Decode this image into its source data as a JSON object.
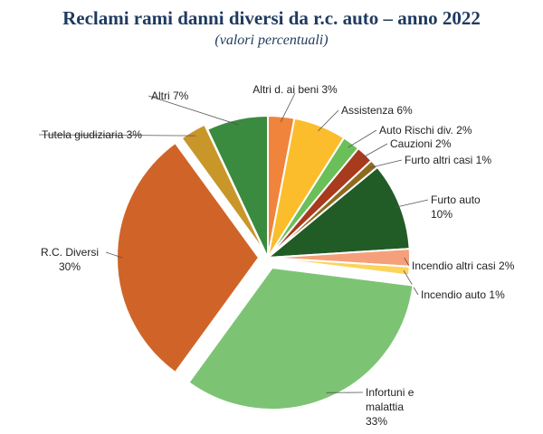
{
  "title": "Reclami rami danni diversi da r.c. auto – anno 2022",
  "subtitle": "(valori percentuali)",
  "chart_data": {
    "type": "pie",
    "unit": "%",
    "slices": [
      {
        "label": "Altri d. ai beni 3%",
        "value": 3,
        "color": "#f0843c"
      },
      {
        "label": "Assistenza 6%",
        "value": 6,
        "color": "#fbbd2c"
      },
      {
        "label": "Auto Rischi div.  2%",
        "value": 2,
        "color": "#6abf59"
      },
      {
        "label": "Cauzioni 2%",
        "value": 2,
        "color": "#a83a1d"
      },
      {
        "label": "Furto altri casi 1%",
        "value": 1,
        "color": "#8e6a1f"
      },
      {
        "label": [
          "Furto auto",
          "10%"
        ],
        "value": 10,
        "color": "#215b25"
      },
      {
        "label": "Incendio altri casi 2%",
        "value": 2,
        "color": "#f5a07a"
      },
      {
        "label": "Incendio auto 1%",
        "value": 1,
        "color": "#fcd45c"
      },
      {
        "label": [
          "Infortuni e",
          "malattia",
          "33%"
        ],
        "value": 33,
        "color": "#7cc474"
      },
      {
        "label": [
          "R.C. Diversi",
          "30%"
        ],
        "value": 30,
        "color": "#d06428"
      },
      {
        "label": "Tutela giudiziaria 3%",
        "value": 3,
        "color": "#c9962a"
      },
      {
        "label": "Altri 7%",
        "value": 7,
        "color": "#3a8a3f"
      }
    ]
  }
}
